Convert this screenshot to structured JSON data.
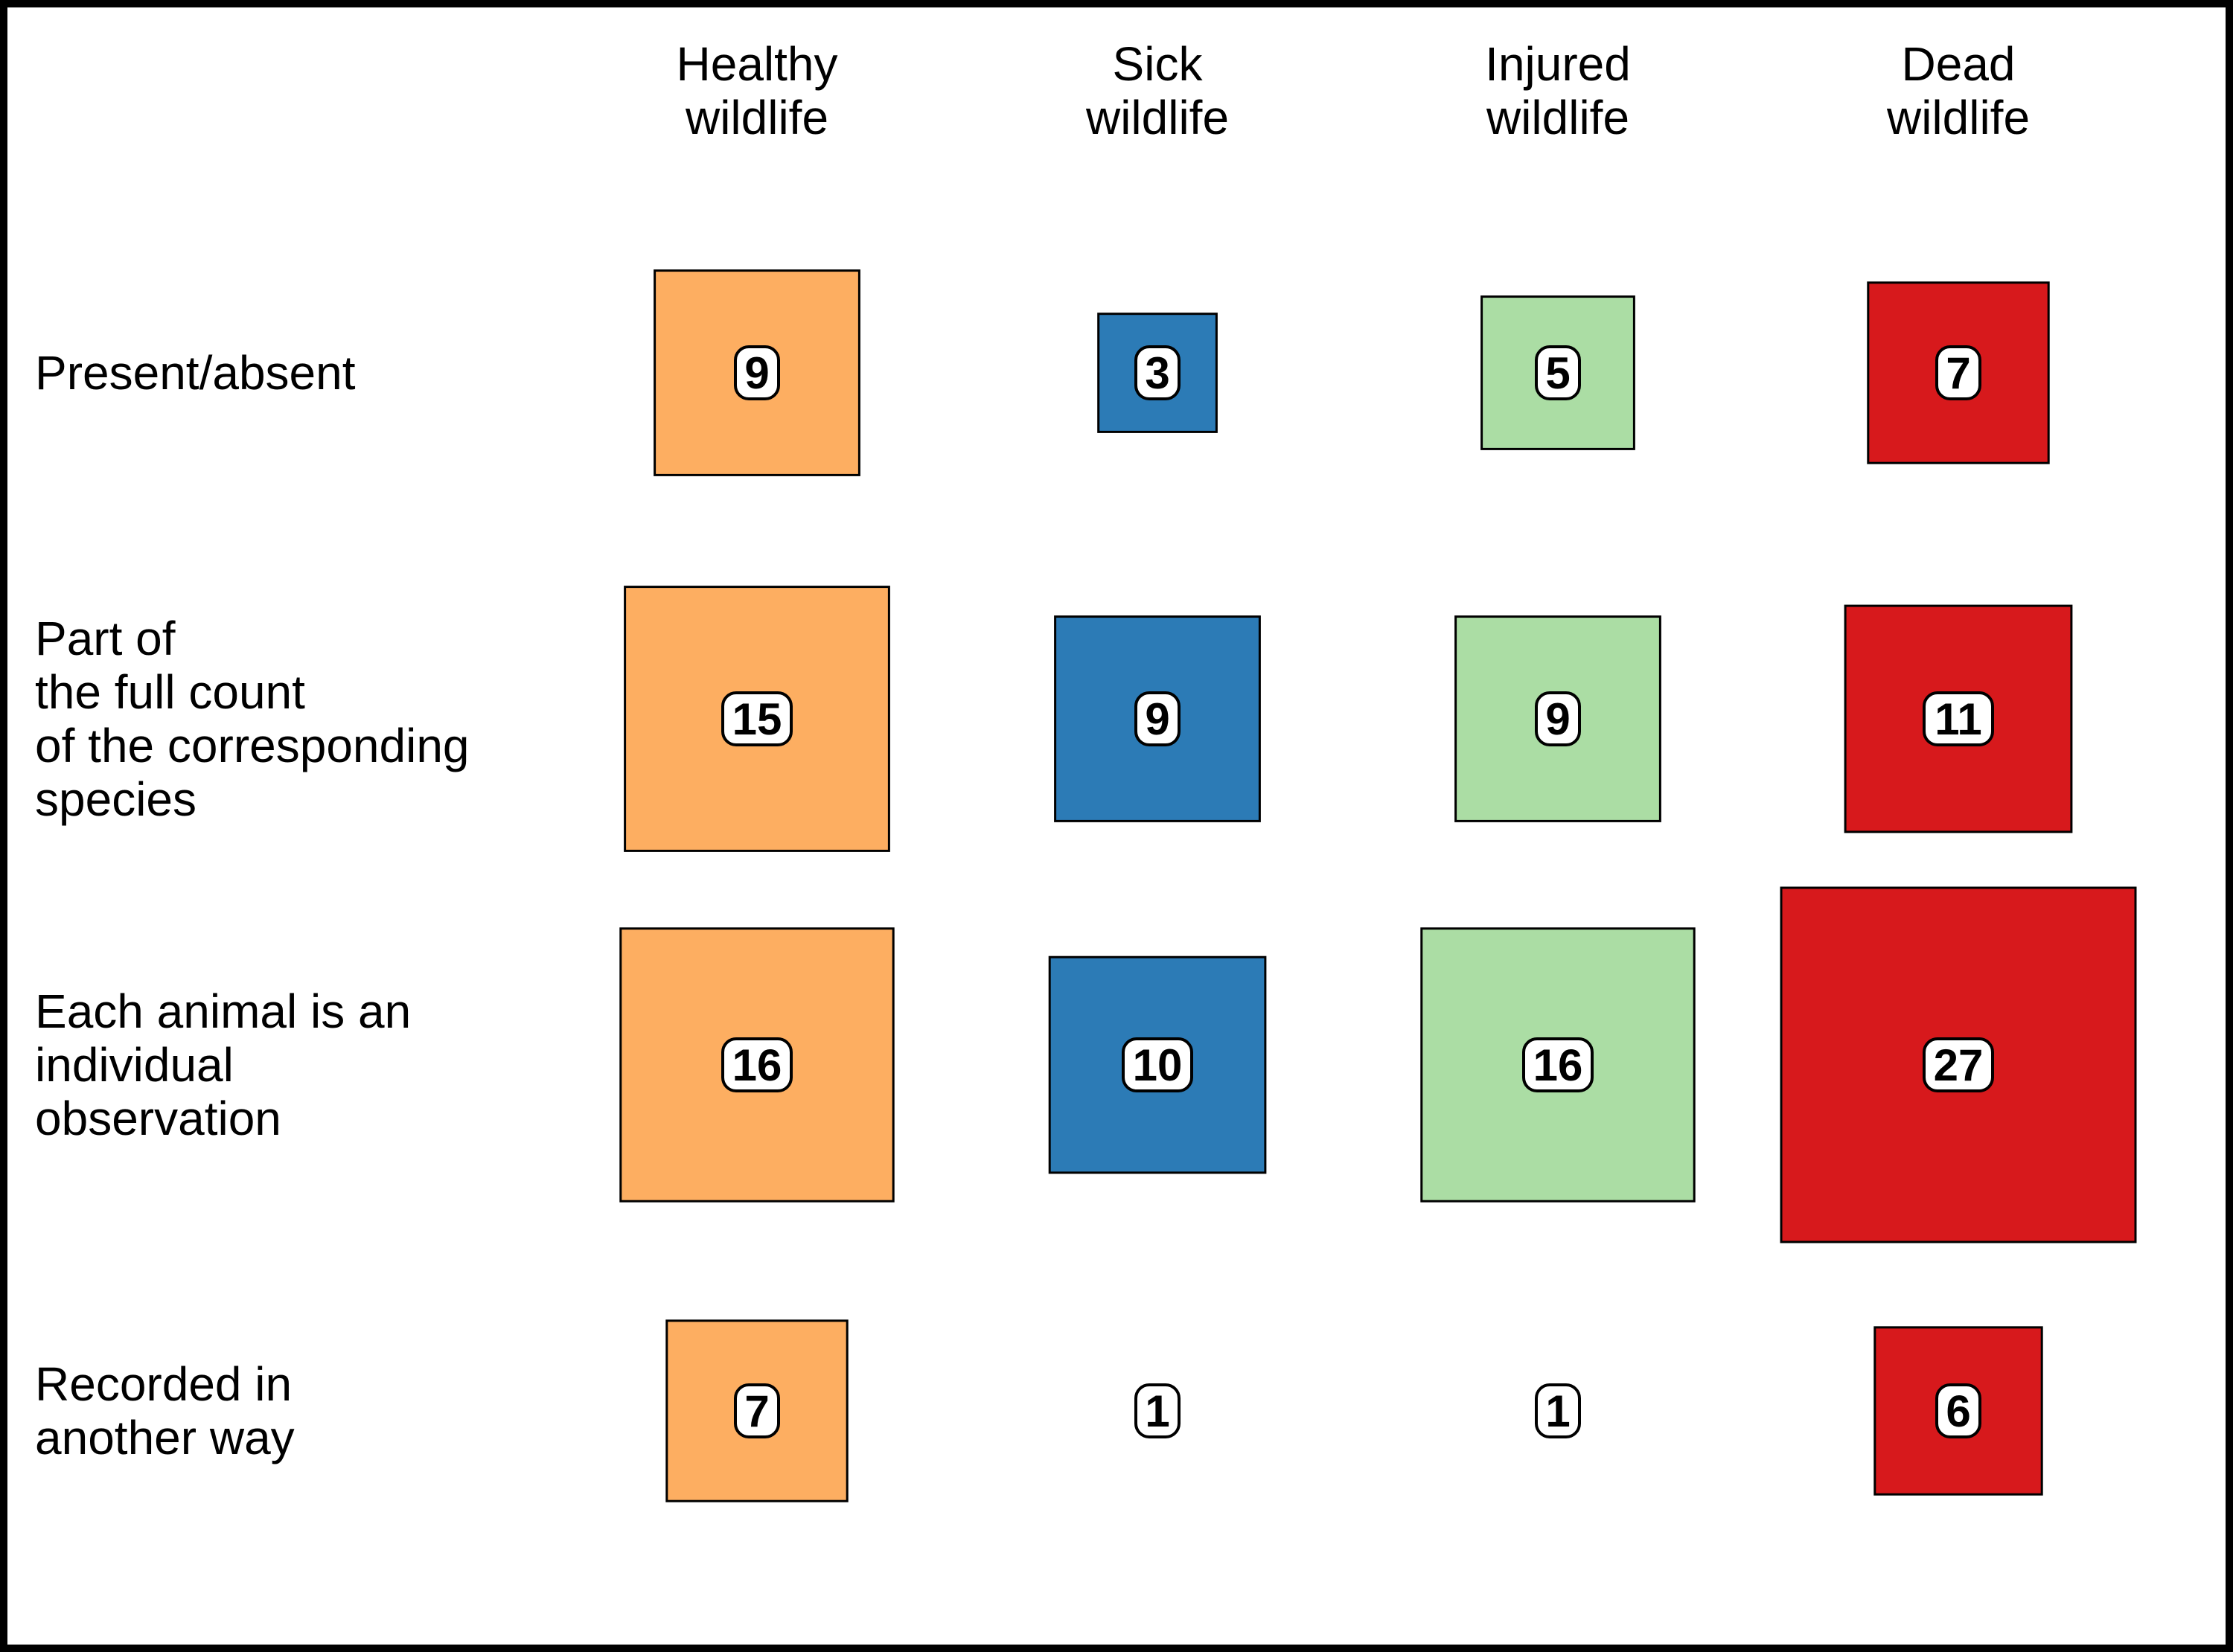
{
  "chart_data": {
    "type": "table",
    "columns": [
      {
        "line1": "Healthy",
        "line2": "wildlife",
        "color": "#fdae61"
      },
      {
        "line1": "Sick",
        "line2": "wildlife",
        "color": "#2c7bb6"
      },
      {
        "line1": "Injured",
        "line2": "wildlife",
        "color": "#abdda4"
      },
      {
        "line1": "Dead",
        "line2": "wildlife",
        "color": "#d7191c"
      }
    ],
    "rows": [
      {
        "lines": [
          "Present/absent"
        ],
        "values": [
          9,
          3,
          5,
          7
        ]
      },
      {
        "lines": [
          "Part of",
          "the full count",
          "of the corresponding",
          "species"
        ],
        "values": [
          15,
          9,
          9,
          11
        ]
      },
      {
        "lines": [
          "Each animal is an",
          "individual",
          "observation"
        ],
        "values": [
          16,
          10,
          16,
          27
        ]
      },
      {
        "lines": [
          "Recorded in",
          "another way"
        ],
        "values": [
          7,
          1,
          1,
          6
        ]
      }
    ]
  }
}
